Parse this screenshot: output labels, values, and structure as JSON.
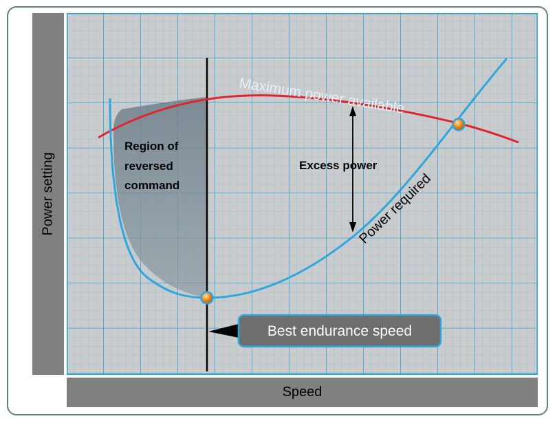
{
  "axes": {
    "y_label": "Power setting",
    "x_label": "Speed"
  },
  "curves": {
    "max_power": {
      "label": "Maximum power available",
      "color": "#e0242d"
    },
    "power_required": {
      "label": "Power required",
      "color": "#2ea6de"
    }
  },
  "annotations": {
    "region_line1": "Region of",
    "region_line2": "reversed",
    "region_line3": "command",
    "excess_power": "Excess power",
    "best_endurance": "Best endurance speed"
  },
  "colors": {
    "grid_background": "#cbcbcb",
    "grid_major": "#2ea6de",
    "grid_minor": "#7fc6e8",
    "shaded_region": "#7a8a94",
    "callout_fill": "#6e6e6e",
    "callout_border": "#2ea6de",
    "marker": "#f08a1c"
  }
}
